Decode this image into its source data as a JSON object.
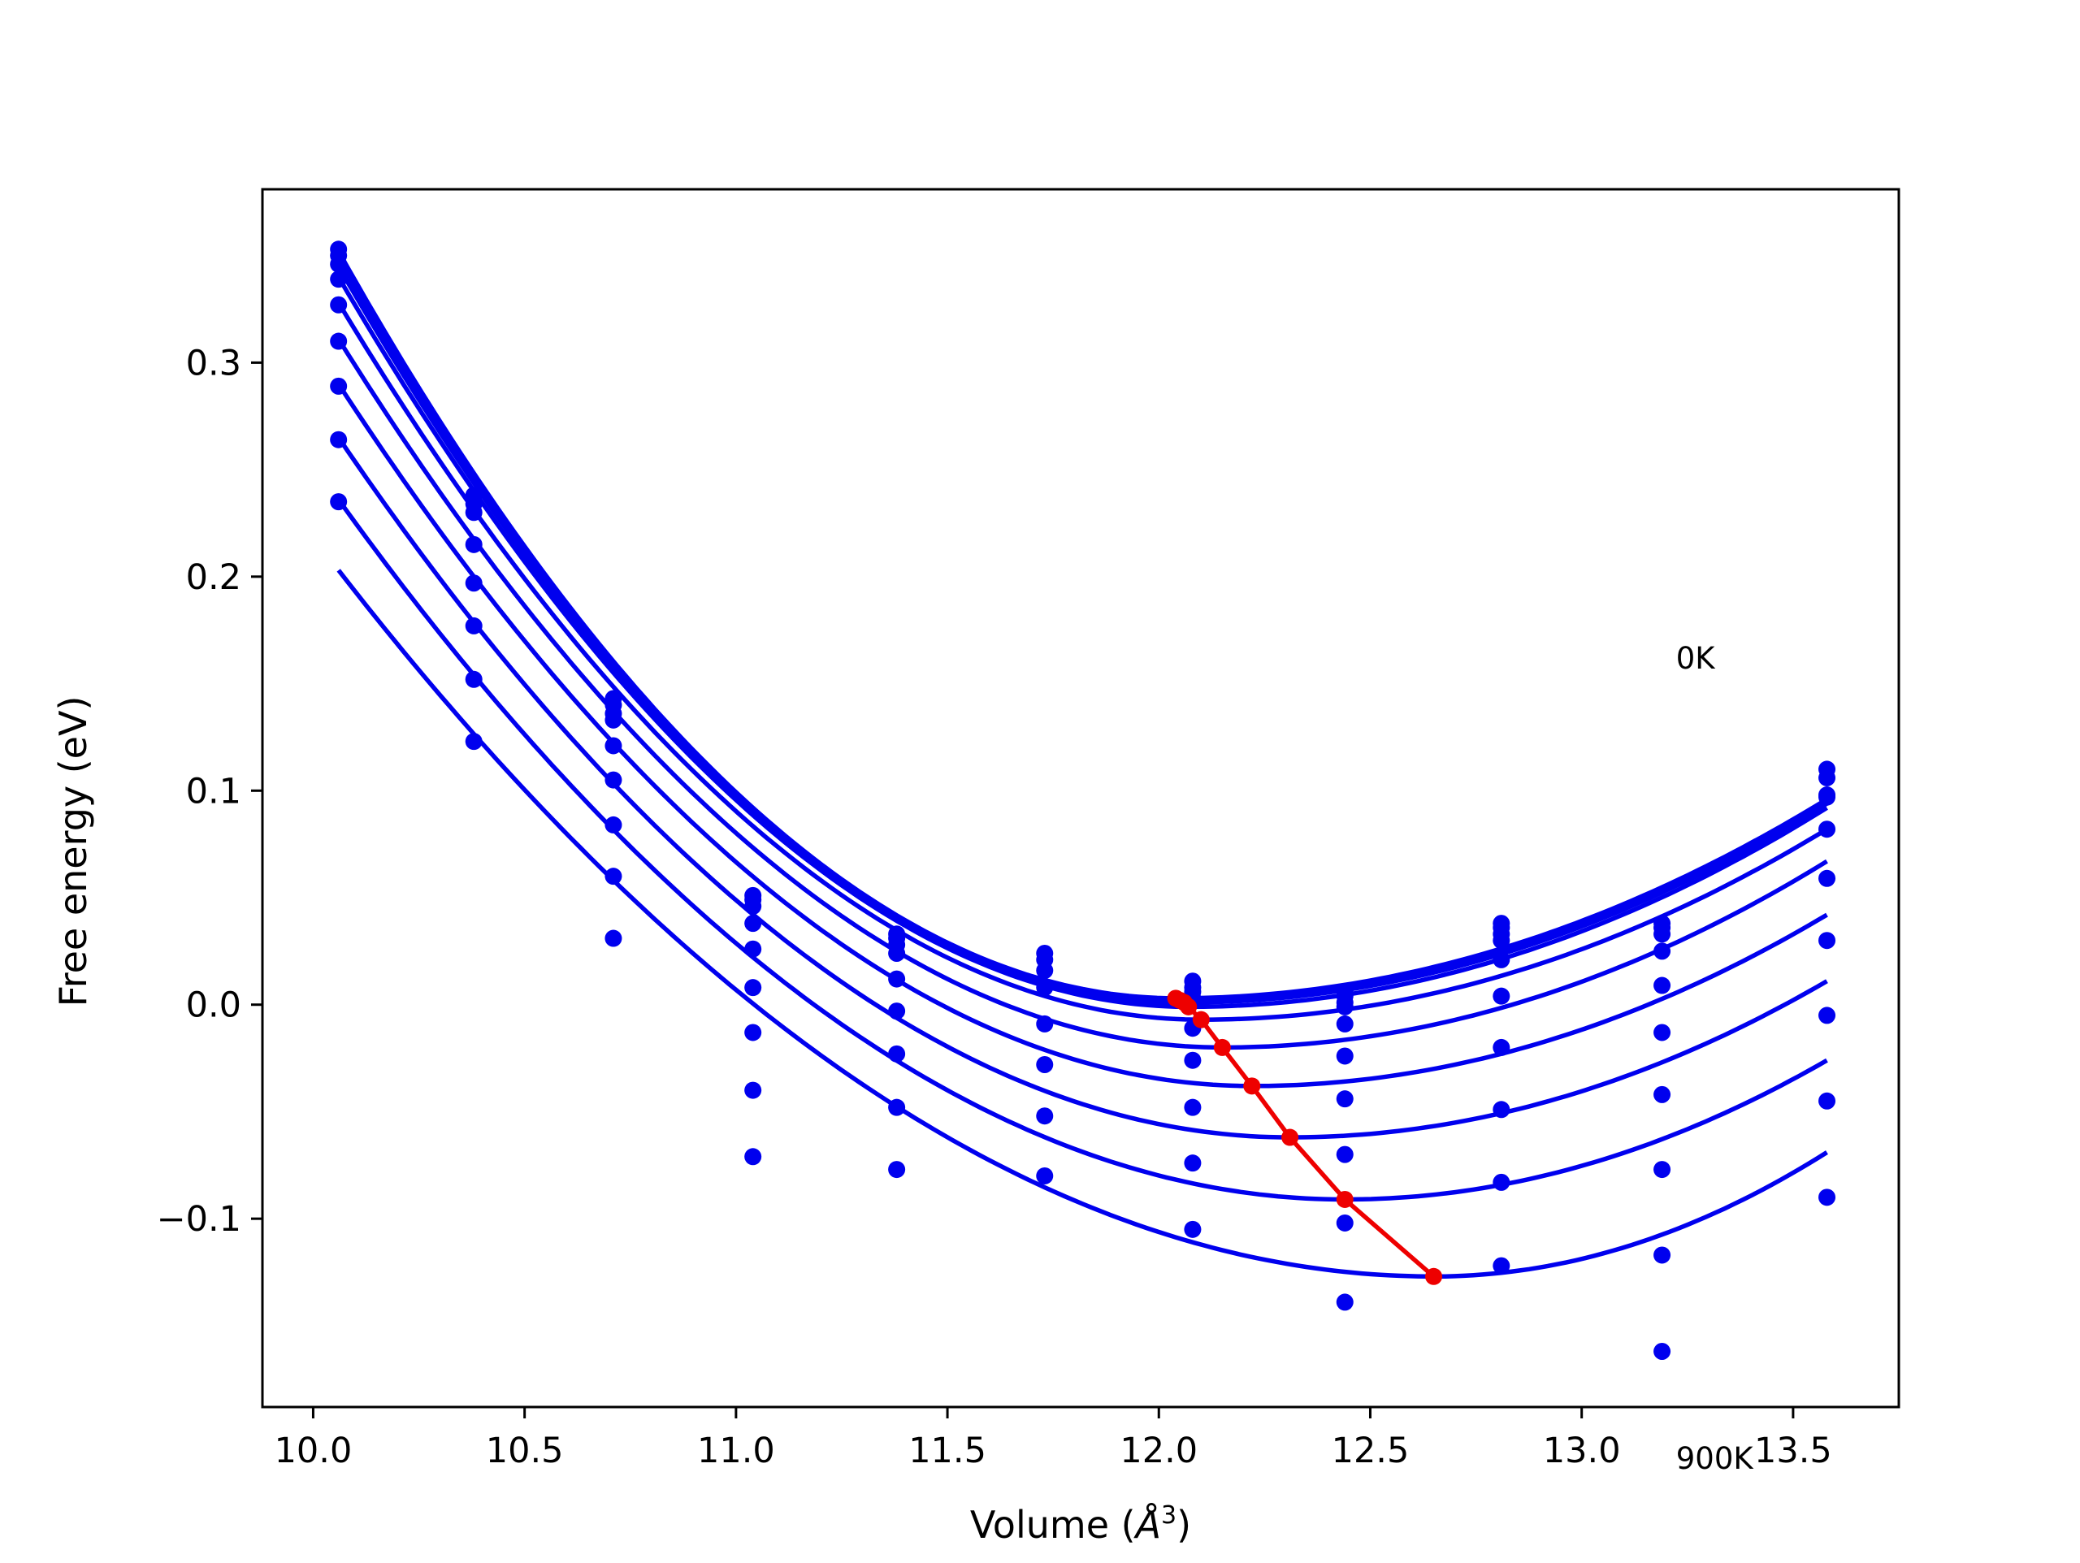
{
  "chart_data": {
    "type": "scatter",
    "title": "",
    "xlabel": "Volume (",
    "xlabel_symbol": "Å",
    "xlabel_exponent": "3",
    "xlabel_close": ")",
    "ylabel": "Free energy (eV)",
    "xlim": [
      9.88,
      13.75
    ],
    "ylim": [
      -0.188,
      0.381
    ],
    "grid": false,
    "legend": "none",
    "x_ticks": [
      {
        "value": 10.0,
        "label": "10.0"
      },
      {
        "value": 10.5,
        "label": "10.5"
      },
      {
        "value": 11.0,
        "label": "11.0"
      },
      {
        "value": 11.5,
        "label": "11.5"
      },
      {
        "value": 12.0,
        "label": "12.0"
      },
      {
        "value": 12.5,
        "label": "12.5"
      },
      {
        "value": 13.0,
        "label": "13.0"
      },
      {
        "value": 13.5,
        "label": "13.5"
      }
    ],
    "y_ticks": [
      {
        "value": -0.1,
        "label": "−0.1"
      },
      {
        "value": 0.0,
        "label": "0.0"
      },
      {
        "value": 0.1,
        "label": "0.1"
      },
      {
        "value": 0.2,
        "label": "0.2"
      },
      {
        "value": 0.3,
        "label": "0.3"
      }
    ],
    "annotations": [
      {
        "text": "0K",
        "x": 13.2,
        "y": 0.162
      },
      {
        "text": "900K",
        "x": 13.2,
        "y": -0.212
      }
    ],
    "colors": {
      "series": "#0000ee",
      "minima": "#ee0000",
      "axes": "#000000"
    },
    "volumes": [
      10.06,
      10.38,
      10.71,
      11.04,
      11.38,
      11.73,
      12.08,
      12.44,
      12.81,
      13.19,
      13.58
    ],
    "series": [
      {
        "fit": {
          "min_x": 12.04,
          "min_y": 0.003,
          "left_y": 0.352,
          "right_y": 0.096
        },
        "values": [
          0.353,
          0.238,
          0.143,
          0.051,
          0.033,
          0.024,
          0.011,
          0.006,
          0.038,
          0.038,
          0.11
        ]
      },
      {
        "fit": {
          "min_x": 12.05,
          "min_y": 0.002,
          "left_y": 0.349,
          "right_y": 0.095
        },
        "values": [
          0.35,
          0.234,
          0.14,
          0.049,
          0.031,
          0.021,
          0.008,
          0.004,
          0.036,
          0.036,
          0.106
        ]
      },
      {
        "fit": {
          "min_x": 12.06,
          "min_y": 0.001,
          "left_y": 0.345,
          "right_y": 0.094
        },
        "values": [
          0.346,
          0.23,
          0.136,
          0.046,
          0.028,
          0.016,
          0.006,
          0.001,
          0.033,
          0.033,
          0.098
        ]
      },
      {
        "fit": {
          "min_x": 12.07,
          "min_y": -0.001,
          "left_y": 0.34,
          "right_y": 0.092
        },
        "values": [
          0.339,
          0.215,
          0.133,
          0.038,
          0.024,
          0.008,
          0.003,
          -0.001,
          0.03,
          0.025,
          0.097
        ]
      },
      {
        "fit": {
          "min_x": 12.1,
          "min_y": -0.007,
          "left_y": 0.328,
          "right_y": 0.082
        },
        "values": [
          0.327,
          0.197,
          0.121,
          0.026,
          0.012,
          -0.009,
          -0.011,
          -0.009,
          0.021,
          0.009,
          0.082
        ]
      },
      {
        "fit": {
          "min_x": 12.15,
          "min_y": -0.02,
          "left_y": 0.311,
          "right_y": 0.067
        },
        "values": [
          0.31,
          0.177,
          0.105,
          0.008,
          -0.003,
          -0.028,
          -0.026,
          -0.024,
          0.004,
          -0.013,
          0.059
        ]
      },
      {
        "fit": {
          "min_x": 12.22,
          "min_y": -0.038,
          "left_y": 0.29,
          "right_y": 0.042
        },
        "values": [
          0.289,
          0.152,
          0.084,
          -0.013,
          -0.023,
          -0.052,
          -0.048,
          -0.044,
          -0.02,
          -0.042,
          0.03
        ]
      },
      {
        "fit": {
          "min_x": 12.31,
          "min_y": -0.062,
          "left_y": 0.265,
          "right_y": 0.011
        },
        "values": [
          0.264,
          0.123,
          0.06,
          -0.04,
          -0.048,
          -0.08,
          -0.074,
          -0.07,
          -0.049,
          -0.077,
          -0.005
        ]
      },
      {
        "fit": {
          "min_x": 12.44,
          "min_y": -0.091,
          "left_y": 0.236,
          "right_y": -0.026
        },
        "values": [
          0.235,
          null,
          0.031,
          -0.071,
          -0.077,
          null,
          -0.105,
          -0.102,
          -0.083,
          -0.117,
          -0.045
        ]
      },
      {
        "fit": {
          "min_x": 12.65,
          "min_y": -0.127,
          "left_y": 0.203,
          "right_y": -0.069
        },
        "values": [
          null,
          null,
          null,
          null,
          null,
          null,
          null,
          -0.139,
          -0.122,
          -0.162,
          -0.09
        ]
      }
    ],
    "minima_curve": [
      {
        "x": 12.04,
        "y": 0.003
      },
      {
        "x": 12.05,
        "y": 0.002
      },
      {
        "x": 12.06,
        "y": 0.001
      },
      {
        "x": 12.07,
        "y": -0.001
      },
      {
        "x": 12.1,
        "y": -0.007
      },
      {
        "x": 12.15,
        "y": -0.02
      },
      {
        "x": 12.22,
        "y": -0.038
      },
      {
        "x": 12.31,
        "y": -0.062
      },
      {
        "x": 12.44,
        "y": -0.091
      },
      {
        "x": 12.65,
        "y": -0.127
      }
    ]
  }
}
